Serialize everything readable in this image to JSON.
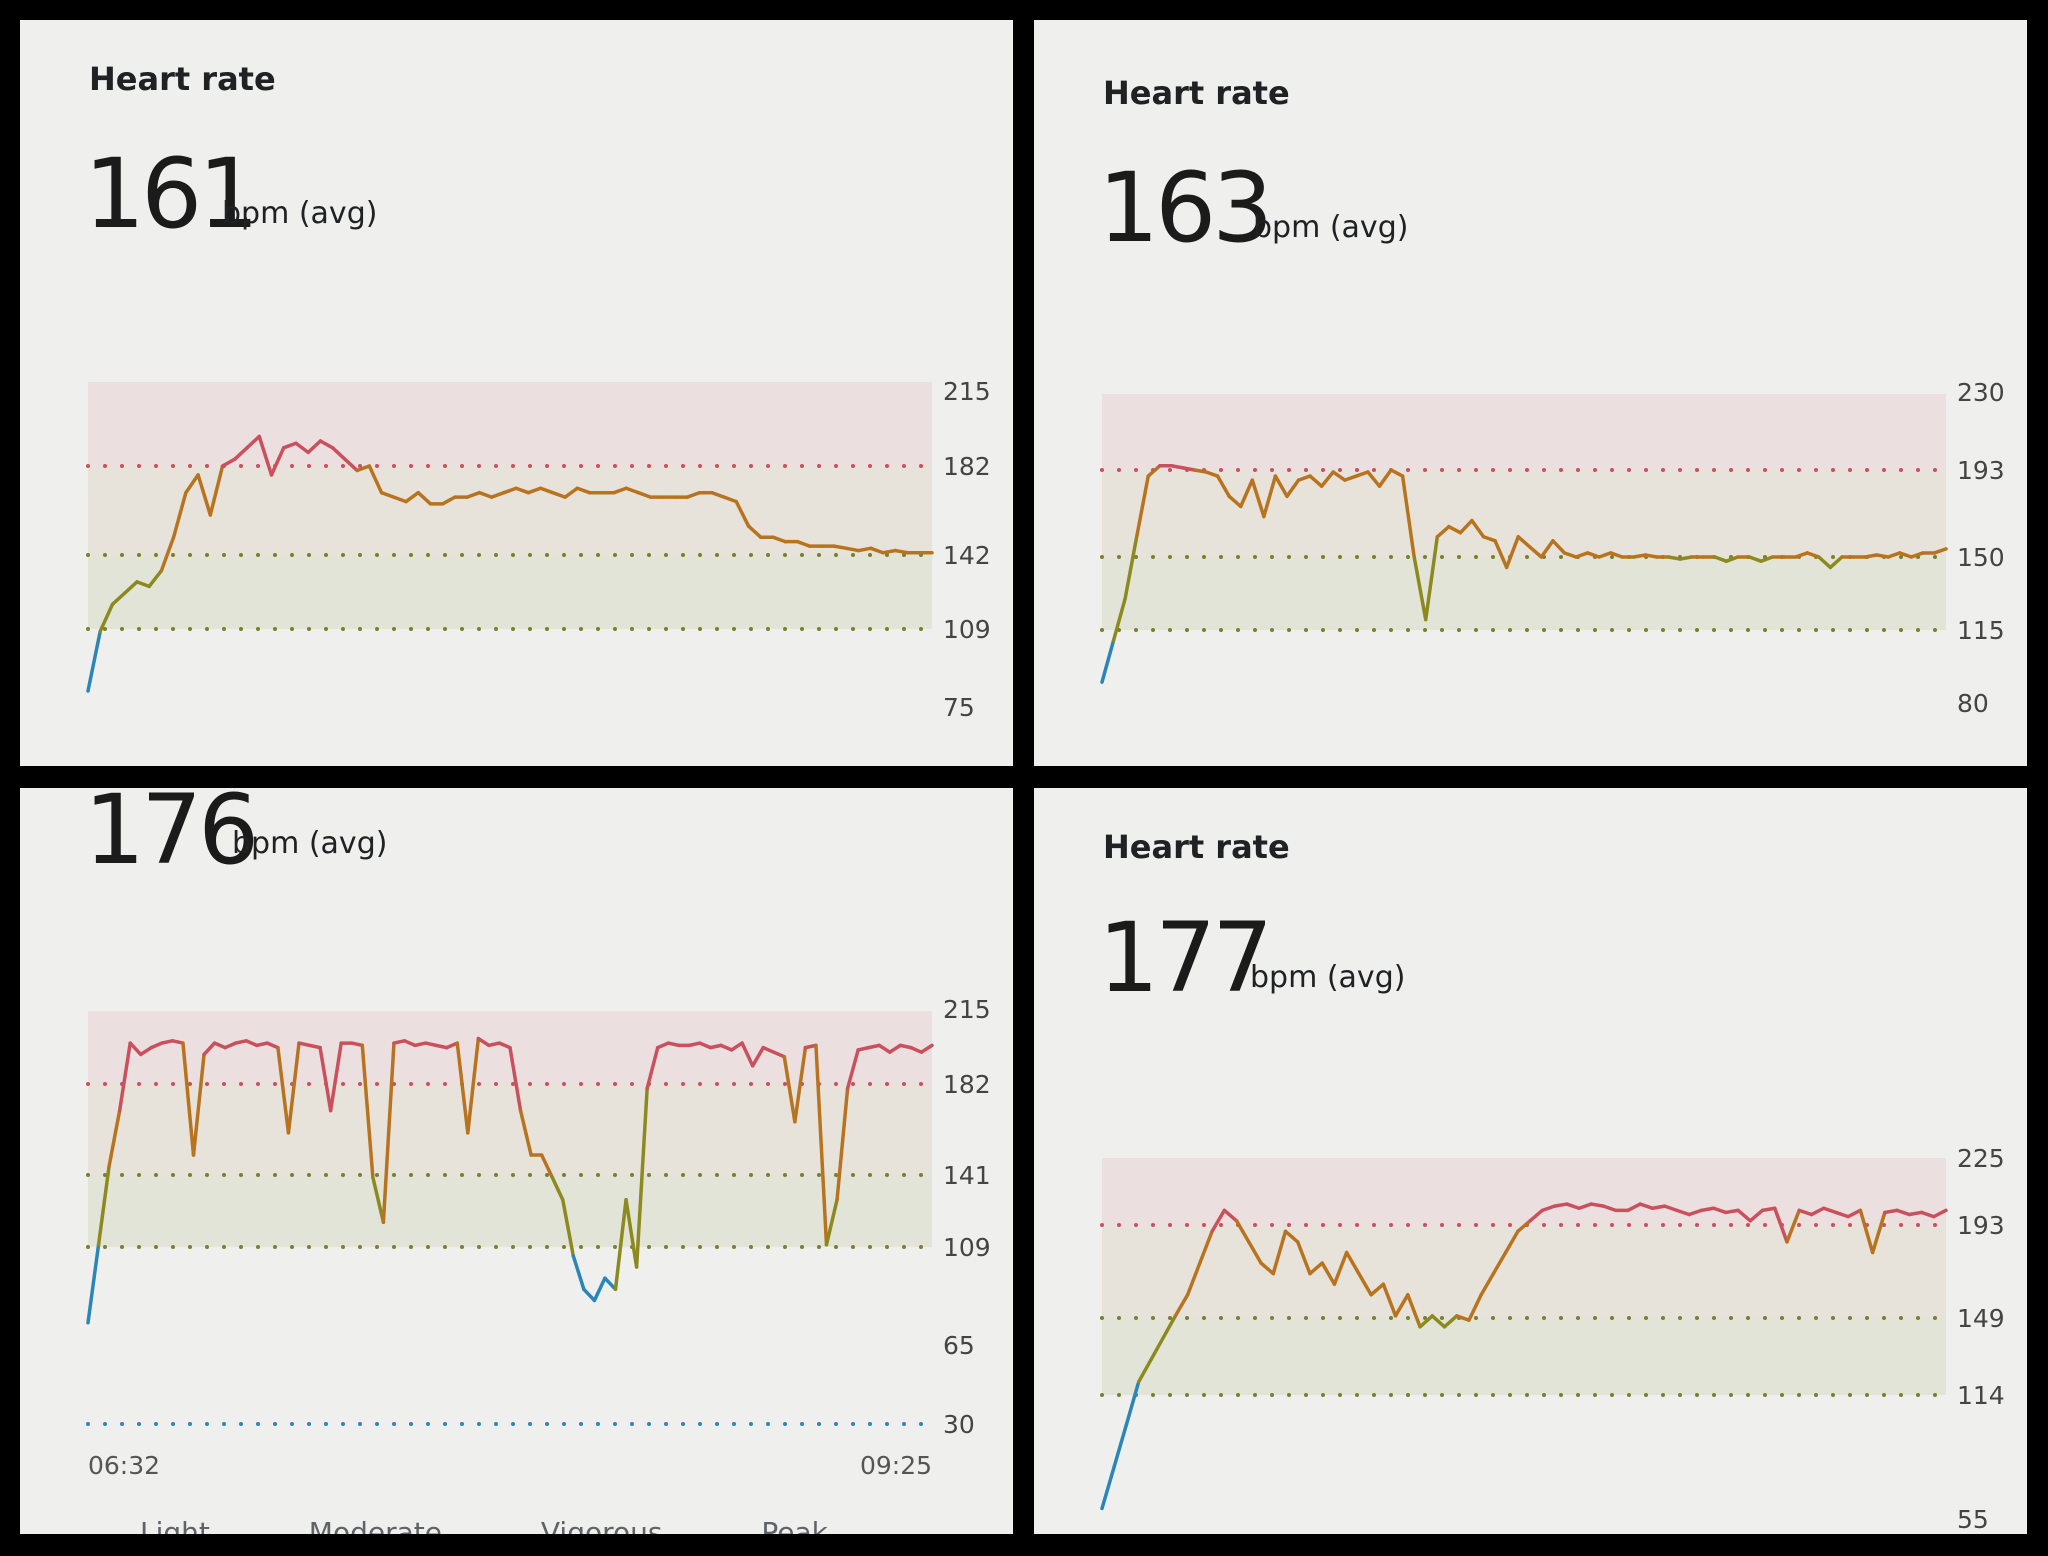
{
  "panels": [
    {
      "title": "Heart rate",
      "avg_value": "161",
      "avg_unit": "bpm (avg)"
    },
    {
      "title": "Heart rate",
      "avg_value": "163",
      "avg_unit": "bpm (avg)"
    },
    {
      "title": "",
      "avg_value": "176",
      "avg_unit": "bpm (avg)",
      "x_start": "06:32",
      "x_end": "09:25",
      "legend_partial": [
        "Light",
        "Moderate",
        "Vigorous",
        "Peak"
      ]
    },
    {
      "title": "Heart rate",
      "avg_value": "177",
      "avg_unit": "bpm (avg)"
    }
  ],
  "colors": {
    "peak": "#c9505c",
    "vigorous": "#b8731f",
    "moderate": "#8c8a1e",
    "light": "#2a86b8",
    "band_peak": "#ebdfdf",
    "band_vigorous": "#e7e3da",
    "band_moderate": "#e3e4d8",
    "dot_peak": "#c9505c",
    "dot_other": "#7c7f2a",
    "dot_light": "#2a86b8"
  },
  "chart_data": [
    {
      "type": "line",
      "yticks": [
        215,
        182,
        142,
        109,
        75
      ],
      "zones": {
        "peak_min": 182,
        "vigorous_min": 142,
        "moderate_min": 109
      },
      "ylim": [
        75,
        215
      ],
      "series": [
        {
          "values": [
            82,
            108,
            120,
            125,
            130,
            128,
            135,
            150,
            170,
            178,
            160,
            182,
            185,
            190,
            195,
            178,
            190,
            192,
            188,
            193,
            190,
            185,
            180,
            182,
            170,
            168,
            166,
            170,
            165,
            165,
            168,
            168,
            170,
            168,
            170,
            172,
            170,
            172,
            170,
            168,
            172,
            170,
            170,
            170,
            172,
            170,
            168,
            168,
            168,
            168,
            170,
            170,
            168,
            166,
            155,
            150,
            150,
            148,
            148,
            146,
            146,
            146,
            145,
            144,
            145,
            143,
            144,
            143,
            143,
            143
          ]
        }
      ]
    },
    {
      "type": "line",
      "yticks": [
        230,
        193,
        150,
        115,
        80
      ],
      "zones": {
        "peak_min": 193,
        "vigorous_min": 150,
        "moderate_min": 115
      },
      "ylim": [
        80,
        230
      ],
      "series": [
        {
          "values": [
            90,
            110,
            130,
            160,
            190,
            195,
            195,
            194,
            193,
            192,
            190,
            180,
            175,
            188,
            170,
            190,
            180,
            188,
            190,
            185,
            192,
            188,
            190,
            192,
            185,
            193,
            190,
            150,
            120,
            160,
            165,
            162,
            168,
            160,
            158,
            145,
            160,
            155,
            150,
            158,
            152,
            150,
            152,
            150,
            152,
            150,
            150,
            151,
            150,
            150,
            149,
            150,
            150,
            150,
            148,
            150,
            150,
            148,
            150,
            150,
            150,
            152,
            150,
            145,
            150,
            150,
            150,
            151,
            150,
            152,
            150,
            152,
            152,
            154
          ]
        }
      ]
    },
    {
      "type": "line",
      "yticks": [
        215,
        182,
        141,
        109,
        65,
        30
      ],
      "zones": {
        "peak_min": 182,
        "vigorous_min": 141,
        "moderate_min": 109
      },
      "ylim": [
        30,
        215
      ],
      "x_range": [
        "06:32",
        "09:25"
      ],
      "series": [
        {
          "values": [
            75,
            110,
            145,
            170,
            200,
            195,
            198,
            200,
            201,
            200,
            150,
            195,
            200,
            198,
            200,
            201,
            199,
            200,
            198,
            160,
            200,
            199,
            198,
            170,
            200,
            200,
            199,
            140,
            120,
            200,
            201,
            199,
            200,
            199,
            198,
            200,
            160,
            202,
            199,
            200,
            198,
            170,
            150,
            150,
            140,
            130,
            105,
            90,
            85,
            95,
            90,
            130,
            100,
            180,
            198,
            200,
            199,
            199,
            200,
            198,
            199,
            197,
            200,
            190,
            198,
            196,
            194,
            165,
            198,
            199,
            110,
            130,
            180,
            197,
            198,
            199,
            196,
            199,
            198,
            196,
            199
          ]
        }
      ]
    },
    {
      "type": "line",
      "yticks": [
        225,
        193,
        149,
        114,
        55
      ],
      "zones": {
        "peak_min": 193,
        "vigorous_min": 149,
        "moderate_min": 114
      },
      "ylim": [
        55,
        225
      ],
      "series": [
        {
          "values": [
            60,
            80,
            100,
            120,
            130,
            140,
            150,
            160,
            175,
            190,
            200,
            195,
            185,
            175,
            170,
            190,
            185,
            170,
            175,
            165,
            180,
            170,
            160,
            165,
            150,
            160,
            145,
            150,
            145,
            150,
            148,
            160,
            170,
            180,
            190,
            195,
            200,
            202,
            203,
            201,
            203,
            202,
            200,
            200,
            203,
            201,
            202,
            200,
            198,
            200,
            201,
            199,
            200,
            195,
            200,
            201,
            185,
            200,
            198,
            201,
            199,
            197,
            200,
            180,
            199,
            200,
            198,
            199,
            197,
            200
          ]
        }
      ]
    }
  ]
}
